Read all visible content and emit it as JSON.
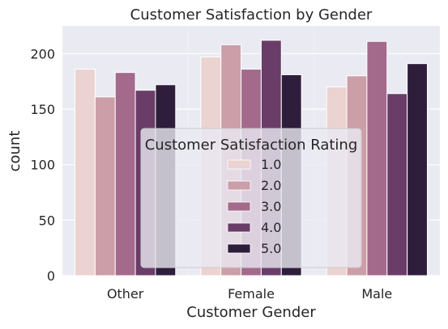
{
  "chart_data": {
    "type": "bar",
    "title": "Customer Satisfaction by Gender",
    "xlabel": "Customer Gender",
    "ylabel": "count",
    "categories": [
      "Other",
      "Female",
      "Male"
    ],
    "ylim": [
      0,
      225
    ],
    "yticks": [
      0,
      50,
      100,
      150,
      200
    ],
    "grid": true,
    "legend": {
      "title": "Customer Satisfaction Rating",
      "placement": "lower-center"
    },
    "series": [
      {
        "name": "1.0",
        "color": "#ead3d0",
        "values": [
          186,
          197,
          170
        ]
      },
      {
        "name": "2.0",
        "color": "#cc9ea8",
        "values": [
          161,
          208,
          180
        ]
      },
      {
        "name": "3.0",
        "color": "#a36a8c",
        "values": [
          183,
          186,
          211
        ]
      },
      {
        "name": "4.0",
        "color": "#6a3d68",
        "values": [
          167,
          212,
          164
        ]
      },
      {
        "name": "5.0",
        "color": "#2e1e3b",
        "values": [
          172,
          181,
          191
        ]
      }
    ]
  },
  "style": {
    "plot_background": "#eaeaf2",
    "grid_color": "#ffffff"
  }
}
